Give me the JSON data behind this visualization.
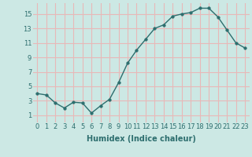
{
  "x": [
    0,
    1,
    2,
    3,
    4,
    5,
    6,
    7,
    8,
    9,
    10,
    11,
    12,
    13,
    14,
    15,
    16,
    17,
    18,
    19,
    20,
    21,
    22,
    23
  ],
  "y": [
    4.0,
    3.8,
    2.7,
    2.0,
    2.8,
    2.7,
    1.3,
    2.3,
    3.2,
    5.5,
    8.2,
    10.0,
    11.5,
    13.0,
    13.5,
    14.7,
    15.0,
    15.2,
    15.8,
    15.8,
    14.6,
    12.8,
    11.0,
    10.3
  ],
  "line_color": "#2d6e6e",
  "marker": "o",
  "marker_size": 2.5,
  "line_width": 1.0,
  "xlabel": "Humidex (Indice chaleur)",
  "xlabel_fontsize": 7,
  "xtick_labels": [
    "0",
    "1",
    "2",
    "3",
    "4",
    "5",
    "6",
    "7",
    "8",
    "9",
    "10",
    "11",
    "12",
    "13",
    "14",
    "15",
    "16",
    "17",
    "18",
    "19",
    "20",
    "21",
    "22",
    "23"
  ],
  "ytick_values": [
    1,
    3,
    5,
    7,
    9,
    11,
    13,
    15
  ],
  "ylim": [
    0,
    16.5
  ],
  "xlim": [
    -0.5,
    23.5
  ],
  "bg_color": "#cce8e4",
  "grid_color": "#e8b8b8",
  "tick_color": "#2d6e6e",
  "tick_fontsize": 6,
  "xlabel_fontweight": "bold"
}
